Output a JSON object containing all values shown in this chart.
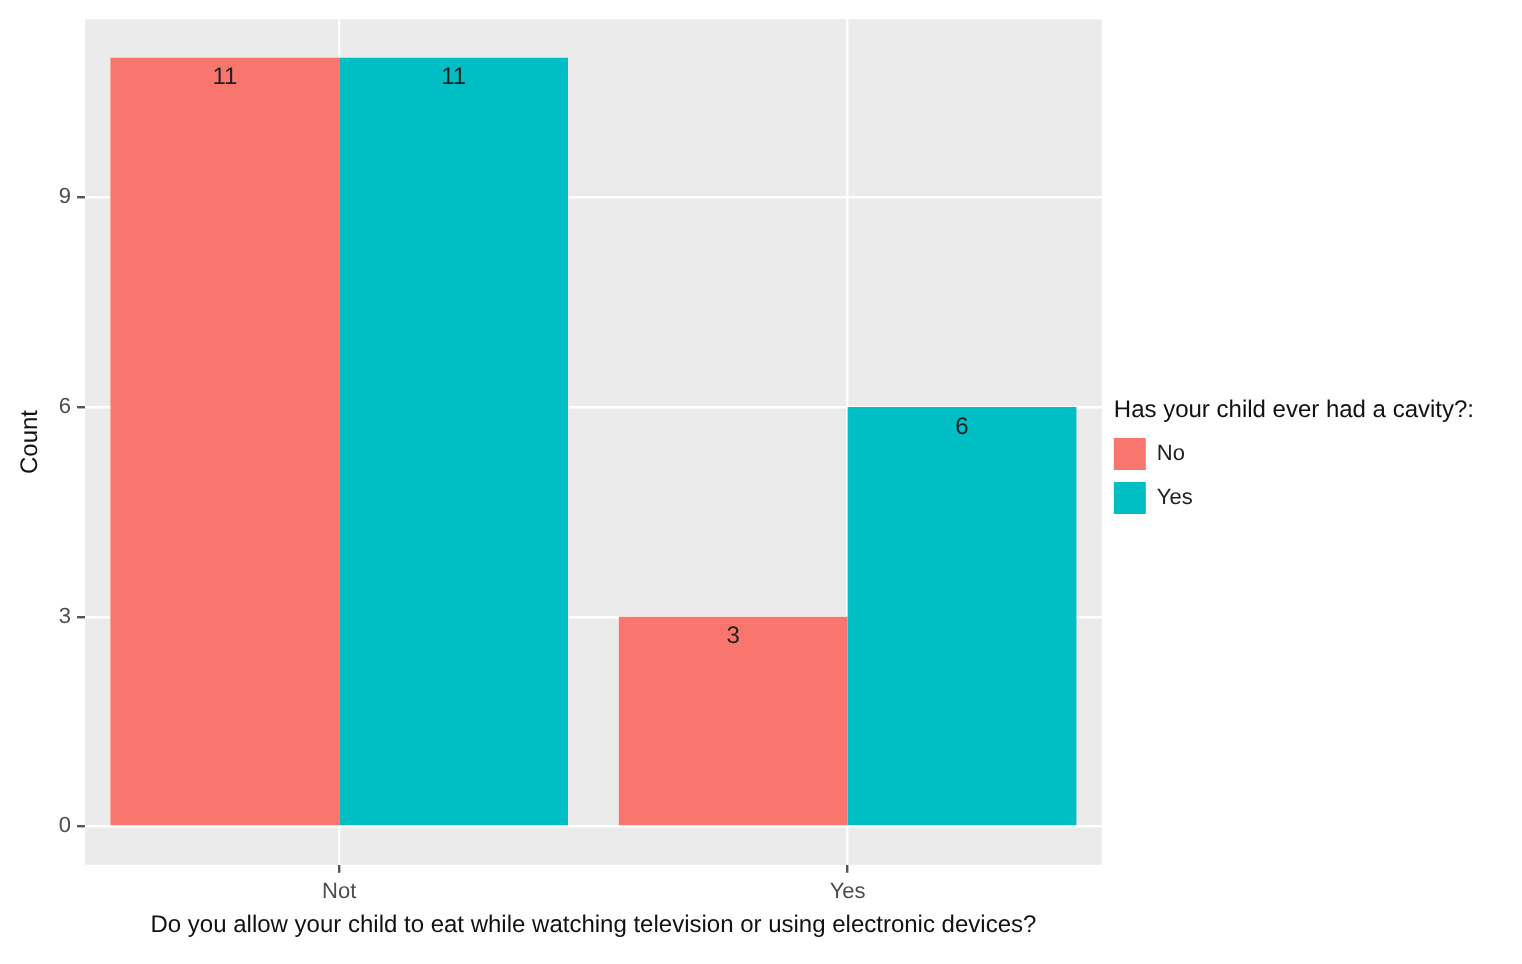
{
  "chart_data": {
    "type": "bar",
    "xlabel": "Do you allow your child to eat while watching television or using electronic devices?",
    "ylabel": "Count",
    "legend_title": "Has your child ever had a cavity?:",
    "categories": [
      "Not",
      "Yes"
    ],
    "series": [
      {
        "name": "No",
        "color": "#f8766d",
        "values": [
          11,
          3
        ]
      },
      {
        "name": "Yes",
        "color": "#00bfc4",
        "values": [
          11,
          6
        ]
      }
    ],
    "ylim": [
      -0.55,
      11.55
    ],
    "yticks": [
      0,
      3,
      6,
      9
    ],
    "grid": true,
    "legend": "right",
    "data_labels": true
  }
}
